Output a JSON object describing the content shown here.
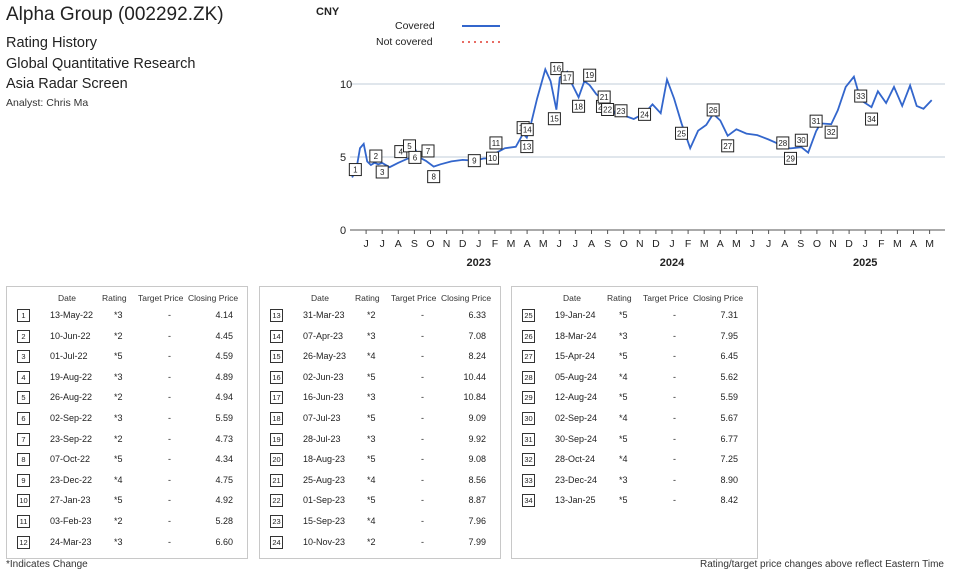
{
  "header": {
    "title": "Alpha Group (002292.ZK)",
    "subtitle_lines": [
      "Rating History",
      "Global Quantitative Research",
      "Asia Radar Screen"
    ],
    "analyst": "Analyst: Chris Ma"
  },
  "legend": {
    "covered": "Covered",
    "not_covered": "Not covered",
    "covered_color": "#3366cc",
    "not_covered_color": "#e03c31"
  },
  "table_headers": {
    "date": "Date",
    "rating": "Rating",
    "target": "Target Price",
    "close": "Closing Price"
  },
  "ratings": [
    {
      "n": "1",
      "date": "13-May-22",
      "rating": "*3",
      "target": "-",
      "close": "4.14"
    },
    {
      "n": "2",
      "date": "10-Jun-22",
      "rating": "*2",
      "target": "-",
      "close": "4.45"
    },
    {
      "n": "3",
      "date": "01-Jul-22",
      "rating": "*5",
      "target": "-",
      "close": "4.59"
    },
    {
      "n": "4",
      "date": "19-Aug-22",
      "rating": "*3",
      "target": "-",
      "close": "4.89"
    },
    {
      "n": "5",
      "date": "26-Aug-22",
      "rating": "*2",
      "target": "-",
      "close": "4.94"
    },
    {
      "n": "6",
      "date": "02-Sep-22",
      "rating": "*3",
      "target": "-",
      "close": "5.59"
    },
    {
      "n": "7",
      "date": "23-Sep-22",
      "rating": "*2",
      "target": "-",
      "close": "4.73"
    },
    {
      "n": "8",
      "date": "07-Oct-22",
      "rating": "*5",
      "target": "-",
      "close": "4.34"
    },
    {
      "n": "9",
      "date": "23-Dec-22",
      "rating": "*4",
      "target": "-",
      "close": "4.75"
    },
    {
      "n": "10",
      "date": "27-Jan-23",
      "rating": "*5",
      "target": "-",
      "close": "4.92"
    },
    {
      "n": "11",
      "date": "03-Feb-23",
      "rating": "*2",
      "target": "-",
      "close": "5.28"
    },
    {
      "n": "12",
      "date": "24-Mar-23",
      "rating": "*3",
      "target": "-",
      "close": "6.60"
    },
    {
      "n": "13",
      "date": "31-Mar-23",
      "rating": "*2",
      "target": "-",
      "close": "6.33"
    },
    {
      "n": "14",
      "date": "07-Apr-23",
      "rating": "*3",
      "target": "-",
      "close": "7.08"
    },
    {
      "n": "15",
      "date": "26-May-23",
      "rating": "*4",
      "target": "-",
      "close": "8.24"
    },
    {
      "n": "16",
      "date": "02-Jun-23",
      "rating": "*5",
      "target": "-",
      "close": "10.44"
    },
    {
      "n": "17",
      "date": "16-Jun-23",
      "rating": "*3",
      "target": "-",
      "close": "10.84"
    },
    {
      "n": "18",
      "date": "07-Jul-23",
      "rating": "*5",
      "target": "-",
      "close": "9.09"
    },
    {
      "n": "19",
      "date": "28-Jul-23",
      "rating": "*3",
      "target": "-",
      "close": "9.92"
    },
    {
      "n": "20",
      "date": "18-Aug-23",
      "rating": "*5",
      "target": "-",
      "close": "9.08"
    },
    {
      "n": "21",
      "date": "25-Aug-23",
      "rating": "*4",
      "target": "-",
      "close": "8.56"
    },
    {
      "n": "22",
      "date": "01-Sep-23",
      "rating": "*5",
      "target": "-",
      "close": "8.87"
    },
    {
      "n": "23",
      "date": "15-Sep-23",
      "rating": "*4",
      "target": "-",
      "close": "7.96"
    },
    {
      "n": "24",
      "date": "10-Nov-23",
      "rating": "*2",
      "target": "-",
      "close": "7.99"
    },
    {
      "n": "25",
      "date": "19-Jan-24",
      "rating": "*5",
      "target": "-",
      "close": "7.31"
    },
    {
      "n": "26",
      "date": "18-Mar-24",
      "rating": "*3",
      "target": "-",
      "close": "7.95"
    },
    {
      "n": "27",
      "date": "15-Apr-24",
      "rating": "*5",
      "target": "-",
      "close": "6.45"
    },
    {
      "n": "28",
      "date": "05-Aug-24",
      "rating": "*4",
      "target": "-",
      "close": "5.62"
    },
    {
      "n": "29",
      "date": "12-Aug-24",
      "rating": "*5",
      "target": "-",
      "close": "5.59"
    },
    {
      "n": "30",
      "date": "02-Sep-24",
      "rating": "*4",
      "target": "-",
      "close": "5.67"
    },
    {
      "n": "31",
      "date": "30-Sep-24",
      "rating": "*5",
      "target": "-",
      "close": "6.77"
    },
    {
      "n": "32",
      "date": "28-Oct-24",
      "rating": "*4",
      "target": "-",
      "close": "7.25"
    },
    {
      "n": "33",
      "date": "23-Dec-24",
      "rating": "*3",
      "target": "-",
      "close": "8.90"
    },
    {
      "n": "34",
      "date": "13-Jan-25",
      "rating": "*5",
      "target": "-",
      "close": "8.42"
    }
  ],
  "footer": {
    "left": "*Indicates Change",
    "right": "Rating/target price changes above reflect Eastern Time"
  },
  "chart_data": {
    "type": "line",
    "ylabel": "CNY",
    "ylim": [
      0,
      12
    ],
    "yticks": [
      0,
      5,
      10
    ],
    "grid": "horizontal",
    "legend_position": "top",
    "month_ticks": [
      "J",
      "J",
      "A",
      "S",
      "O",
      "N",
      "D",
      "J",
      "F",
      "M",
      "A",
      "M",
      "J",
      "J",
      "A",
      "S",
      "O",
      "N",
      "D",
      "J",
      "F",
      "M",
      "A",
      "M",
      "J",
      "J",
      "A",
      "S",
      "O",
      "N",
      "D",
      "J",
      "F",
      "M",
      "A",
      "M"
    ],
    "year_labels": [
      {
        "label": "2023",
        "month_index": 7
      },
      {
        "label": "2024",
        "month_index": 19
      },
      {
        "label": "2025",
        "month_index": 31
      }
    ],
    "series": [
      {
        "name": "Covered",
        "x": [
          "2022-05-05",
          "2022-05-13",
          "2022-05-20",
          "2022-05-27",
          "2022-06-03",
          "2022-06-10",
          "2022-06-17",
          "2022-06-24",
          "2022-07-01",
          "2022-07-15",
          "2022-08-01",
          "2022-08-19",
          "2022-08-26",
          "2022-09-02",
          "2022-09-09",
          "2022-09-23",
          "2022-10-07",
          "2022-10-20",
          "2022-11-10",
          "2022-12-01",
          "2022-12-23",
          "2023-01-10",
          "2023-01-27",
          "2023-02-03",
          "2023-02-20",
          "2023-03-10",
          "2023-03-24",
          "2023-03-31",
          "2023-04-07",
          "2023-04-20",
          "2023-05-05",
          "2023-05-15",
          "2023-05-26",
          "2023-06-02",
          "2023-06-16",
          "2023-06-25",
          "2023-07-07",
          "2023-07-18",
          "2023-07-28",
          "2023-08-10",
          "2023-08-18",
          "2023-08-25",
          "2023-09-01",
          "2023-09-15",
          "2023-10-05",
          "2023-10-20",
          "2023-11-10",
          "2023-11-25",
          "2023-12-10",
          "2023-12-22",
          "2024-01-05",
          "2024-01-19",
          "2024-02-05",
          "2024-02-20",
          "2024-03-05",
          "2024-03-18",
          "2024-04-01",
          "2024-04-15",
          "2024-05-01",
          "2024-05-20",
          "2024-06-10",
          "2024-07-01",
          "2024-07-20",
          "2024-08-05",
          "2024-08-12",
          "2024-09-02",
          "2024-09-15",
          "2024-09-30",
          "2024-10-08",
          "2024-10-28",
          "2024-11-10",
          "2024-11-25",
          "2024-12-10",
          "2024-12-23",
          "2025-01-13",
          "2025-01-25",
          "2025-02-10",
          "2025-02-25",
          "2025-03-10",
          "2025-03-25",
          "2025-04-07",
          "2025-04-20",
          "2025-05-05"
        ],
        "y": [
          3.6,
          4.14,
          5.6,
          5.9,
          4.7,
          4.45,
          4.6,
          4.5,
          4.59,
          4.3,
          4.6,
          4.89,
          4.94,
          5.59,
          5.0,
          4.73,
          4.34,
          4.5,
          4.7,
          4.8,
          4.75,
          4.9,
          4.92,
          5.28,
          5.6,
          5.7,
          6.6,
          6.33,
          7.08,
          9.0,
          11.0,
          10.2,
          8.24,
          10.44,
          10.84,
          10.0,
          9.09,
          10.2,
          9.92,
          9.3,
          9.08,
          8.56,
          8.87,
          7.96,
          7.8,
          7.6,
          7.99,
          8.6,
          8.0,
          10.3,
          9.0,
          7.31,
          5.6,
          6.8,
          7.2,
          7.95,
          7.5,
          6.45,
          6.9,
          6.6,
          6.5,
          6.2,
          5.9,
          5.62,
          5.59,
          5.67,
          5.3,
          6.77,
          7.3,
          7.25,
          8.2,
          9.8,
          10.5,
          8.9,
          8.42,
          9.5,
          8.7,
          9.8,
          8.5,
          9.9,
          8.5,
          8.3,
          8.9
        ]
      }
    ]
  }
}
